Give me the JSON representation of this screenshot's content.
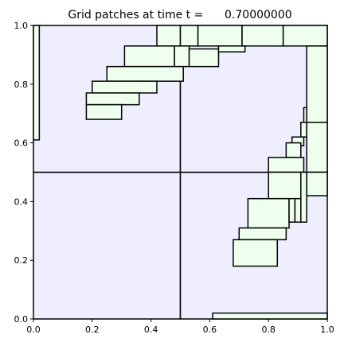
{
  "chart_data": {
    "type": "patch-map",
    "title": "Grid patches at time t =      0.70000000",
    "xlabel": "",
    "ylabel": "",
    "xlim": [
      0.0,
      1.0
    ],
    "ylim": [
      0.0,
      1.0
    ],
    "xticks": [
      "0.0",
      "0.2",
      "0.4",
      "0.6",
      "0.8",
      "1.0"
    ],
    "yticks": [
      "0.0",
      "0.2",
      "0.4",
      "0.6",
      "0.8",
      "1.0"
    ],
    "grid": false,
    "colors": {
      "level1_fill": "#eeeeff",
      "level2_fill": "#eeffee",
      "edge": "#000000"
    },
    "level1_patches": [
      {
        "x0": 0.0,
        "x1": 0.5,
        "y0": 0.0,
        "y1": 0.5
      },
      {
        "x0": 0.5,
        "x1": 1.0,
        "y0": 0.0,
        "y1": 0.5
      },
      {
        "x0": 0.0,
        "x1": 0.5,
        "y0": 0.5,
        "y1": 1.0
      },
      {
        "x0": 0.5,
        "x1": 1.0,
        "y0": 0.5,
        "y1": 1.0
      }
    ],
    "level2_patches": [
      {
        "x0": 0.0,
        "x1": 0.02,
        "y0": 0.61,
        "y1": 1.0
      },
      {
        "x0": 0.42,
        "x1": 0.5,
        "y0": 0.93,
        "y1": 1.0
      },
      {
        "x0": 0.5,
        "x1": 0.56,
        "y0": 0.93,
        "y1": 1.0
      },
      {
        "x0": 0.56,
        "x1": 0.71,
        "y0": 0.93,
        "y1": 1.0
      },
      {
        "x0": 0.71,
        "x1": 0.85,
        "y0": 0.93,
        "y1": 1.0
      },
      {
        "x0": 0.85,
        "x1": 1.0,
        "y0": 0.93,
        "y1": 1.0
      },
      {
        "x0": 0.31,
        "x1": 0.48,
        "y0": 0.86,
        "y1": 0.93
      },
      {
        "x0": 0.48,
        "x1": 0.53,
        "y0": 0.86,
        "y1": 0.93
      },
      {
        "x0": 0.53,
        "x1": 0.63,
        "y0": 0.86,
        "y1": 0.92
      },
      {
        "x0": 0.63,
        "x1": 0.72,
        "y0": 0.91,
        "y1": 0.93
      },
      {
        "x0": 0.25,
        "x1": 0.51,
        "y0": 0.81,
        "y1": 0.86
      },
      {
        "x0": 0.2,
        "x1": 0.42,
        "y0": 0.77,
        "y1": 0.81
      },
      {
        "x0": 0.18,
        "x1": 0.36,
        "y0": 0.73,
        "y1": 0.77
      },
      {
        "x0": 0.18,
        "x1": 0.3,
        "y0": 0.68,
        "y1": 0.73
      },
      {
        "x0": 0.93,
        "x1": 1.0,
        "y0": 0.67,
        "y1": 0.93
      },
      {
        "x0": 0.92,
        "x1": 0.93,
        "y0": 0.64,
        "y1": 0.72
      },
      {
        "x0": 0.91,
        "x1": 0.93,
        "y0": 0.62,
        "y1": 0.67
      },
      {
        "x0": 0.88,
        "x1": 0.92,
        "y0": 0.59,
        "y1": 0.62
      },
      {
        "x0": 0.86,
        "x1": 0.91,
        "y0": 0.55,
        "y1": 0.6
      },
      {
        "x0": 0.93,
        "x1": 1.0,
        "y0": 0.5,
        "y1": 0.67
      },
      {
        "x0": 0.8,
        "x1": 0.92,
        "y0": 0.5,
        "y1": 0.55
      },
      {
        "x0": 0.8,
        "x1": 0.92,
        "y0": 0.41,
        "y1": 0.5
      },
      {
        "x0": 0.93,
        "x1": 1.0,
        "y0": 0.42,
        "y1": 0.5
      },
      {
        "x0": 0.91,
        "x1": 0.93,
        "y0": 0.33,
        "y1": 0.5
      },
      {
        "x0": 0.73,
        "x1": 0.87,
        "y0": 0.31,
        "y1": 0.41
      },
      {
        "x0": 0.87,
        "x1": 0.89,
        "y0": 0.33,
        "y1": 0.41
      },
      {
        "x0": 0.89,
        "x1": 0.91,
        "y0": 0.33,
        "y1": 0.41
      },
      {
        "x0": 0.7,
        "x1": 0.86,
        "y0": 0.27,
        "y1": 0.31
      },
      {
        "x0": 0.68,
        "x1": 0.83,
        "y0": 0.18,
        "y1": 0.27
      },
      {
        "x0": 0.61,
        "x1": 1.0,
        "y0": 0.0,
        "y1": 0.02
      }
    ]
  }
}
